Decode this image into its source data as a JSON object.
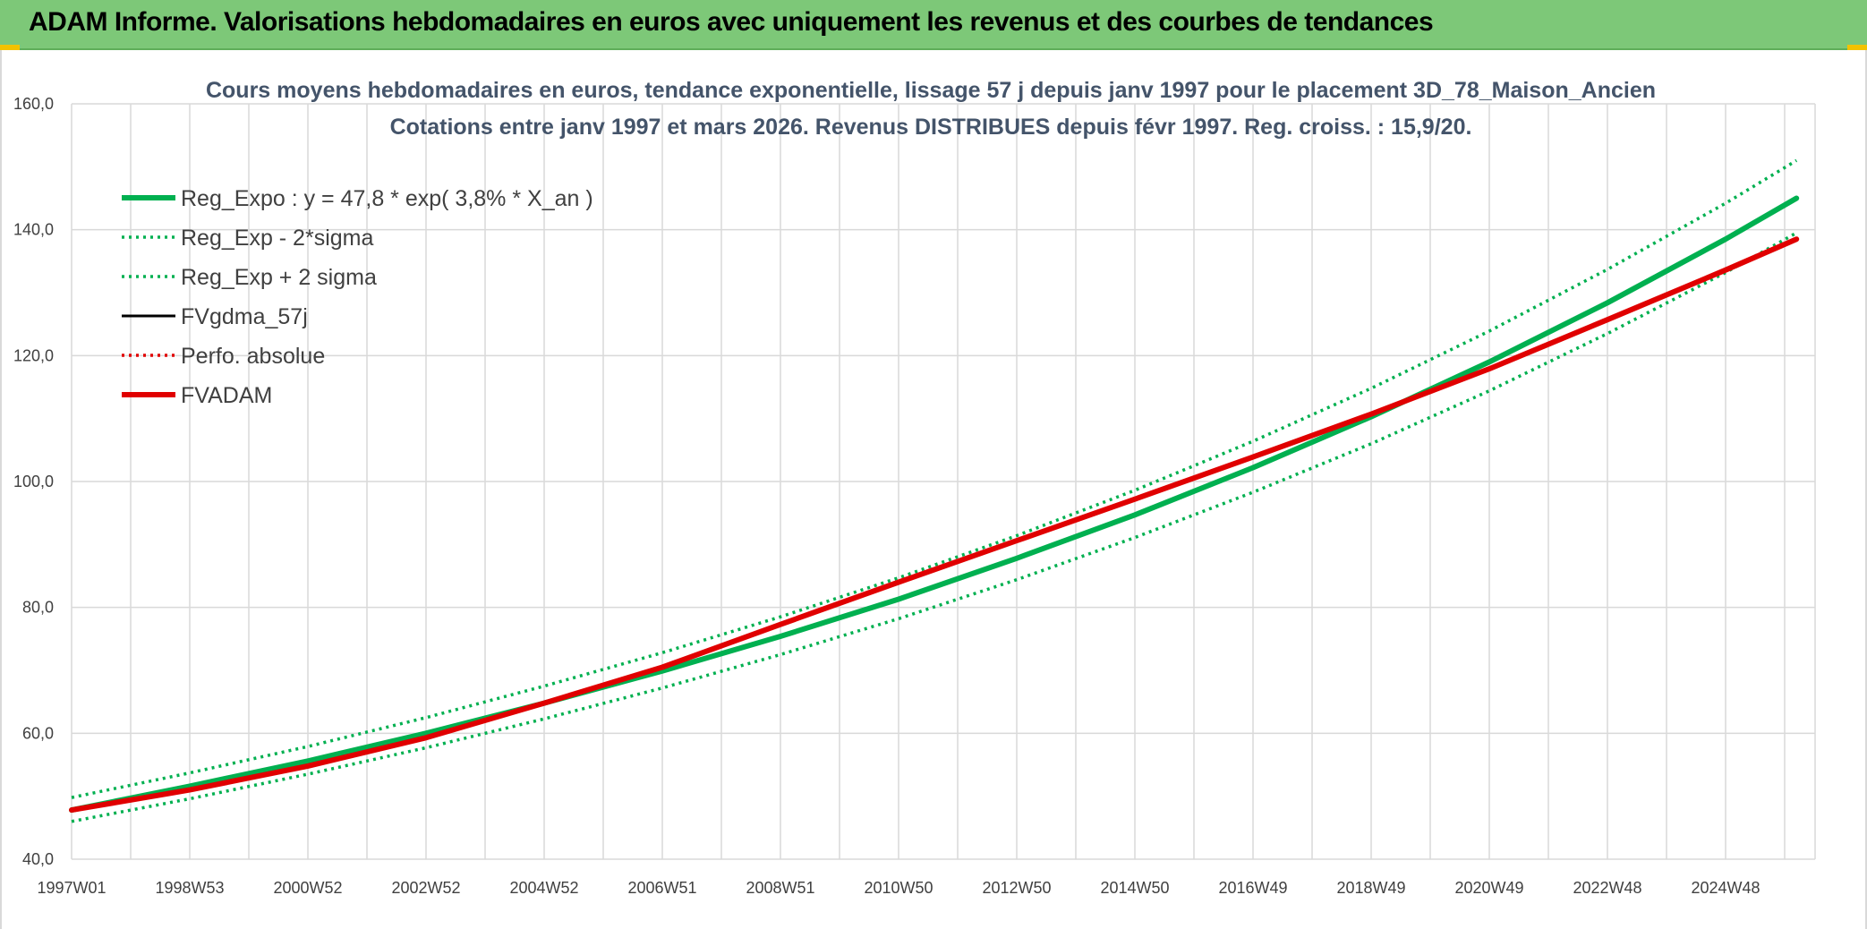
{
  "header": {
    "title": "ADAM Informe. Valorisations hebdomadaires en euros avec uniquement les revenus et des courbes de tendances"
  },
  "colors": {
    "header_bg": "#7dc878",
    "green": "#00b050",
    "red": "#e00000",
    "black": "#000000",
    "grid": "#d9d9d9"
  },
  "chart_data": {
    "type": "line",
    "title": "Cours moyens hebdomadaires en euros, tendance exponentielle, lissage 57 j depuis janv 1997 pour le placement 3D_78_Maison_Ancien",
    "subtitle": "Cotations entre janv 1997 et mars 2026. Revenus DISTRIBUES depuis févr 1997. Reg. croiss. : 15,9/20.",
    "ylim": [
      40,
      160
    ],
    "y_ticks": [
      "40,0",
      "60,0",
      "80,0",
      "100,0",
      "120,0",
      "140,0",
      "160,0"
    ],
    "y_tick_values": [
      40,
      60,
      80,
      100,
      120,
      140,
      160
    ],
    "x_range": [
      1997.0,
      2026.2
    ],
    "x_ticks": [
      "1997W01",
      "1998W53",
      "2000W52",
      "2002W52",
      "2004W52",
      "2006W51",
      "2008W51",
      "2010W50",
      "2012W50",
      "2014W50",
      "2016W49",
      "2018W49",
      "2020W49",
      "2022W48",
      "2024W48"
    ],
    "x_tick_years": [
      1997.0,
      1999.0,
      2001.0,
      2003.0,
      2005.0,
      2007.0,
      2009.0,
      2011.0,
      2013.0,
      2015.0,
      2017.0,
      2019.0,
      2021.0,
      2023.0,
      2025.0
    ],
    "grid": true,
    "legend_position": "top-left",
    "series": [
      {
        "name": "Reg_Expo : y = 47,8 * exp( 3,8% *  X_an )",
        "style": "solid-thick",
        "color": "#00b050",
        "x": [
          1997,
          1999,
          2001,
          2003,
          2005,
          2007,
          2009,
          2011,
          2013,
          2015,
          2017,
          2019,
          2021,
          2023,
          2025,
          2026.2
        ],
        "values": [
          47.8,
          51.6,
          55.6,
          60.0,
          64.8,
          69.9,
          75.4,
          81.3,
          87.8,
          94.7,
          102.2,
          110.3,
          119.0,
          128.4,
          138.5,
          145.0
        ]
      },
      {
        "name": "Reg_Exp - 2*sigma",
        "style": "dotted",
        "color": "#00b050",
        "x": [
          1997,
          1999,
          2001,
          2003,
          2005,
          2007,
          2009,
          2011,
          2013,
          2015,
          2017,
          2019,
          2021,
          2023,
          2025,
          2026.2
        ],
        "values": [
          46.0,
          49.6,
          53.5,
          57.7,
          62.3,
          67.2,
          72.5,
          78.2,
          84.4,
          91.1,
          98.3,
          106.0,
          114.4,
          123.5,
          133.2,
          139.5
        ]
      },
      {
        "name": "Reg_Exp + 2 sigma",
        "style": "dotted",
        "color": "#00b050",
        "x": [
          1997,
          1999,
          2001,
          2003,
          2005,
          2007,
          2009,
          2011,
          2013,
          2015,
          2017,
          2019,
          2021,
          2023,
          2025,
          2026.2
        ],
        "values": [
          49.8,
          53.7,
          57.9,
          62.5,
          67.5,
          72.8,
          78.5,
          84.7,
          91.4,
          98.6,
          106.4,
          114.8,
          123.9,
          133.7,
          144.2,
          151.0
        ]
      },
      {
        "name": "FVgdma_57j",
        "style": "solid",
        "color": "#000000",
        "x": [
          1997,
          1999,
          2001,
          2003,
          2005,
          2007,
          2009,
          2011,
          2013,
          2015,
          2017,
          2019,
          2021,
          2023,
          2025,
          2026.2
        ],
        "values": [
          47.8,
          51.0,
          54.8,
          59.3,
          64.8,
          70.5,
          77.3,
          84.0,
          90.6,
          97.2,
          103.9,
          110.7,
          117.9,
          125.7,
          133.6,
          138.5
        ]
      },
      {
        "name": "Perfo. absolue",
        "style": "dotted",
        "color": "#e00000",
        "x": [
          1997,
          1999,
          2001,
          2003,
          2005,
          2007,
          2009,
          2011,
          2013,
          2015,
          2017,
          2019,
          2021,
          2023,
          2025,
          2026.2
        ],
        "values": [
          47.8,
          51.0,
          54.8,
          59.3,
          64.8,
          70.5,
          77.3,
          84.0,
          90.6,
          97.2,
          103.9,
          110.7,
          117.9,
          125.7,
          133.6,
          138.5
        ]
      },
      {
        "name": "FVADAM",
        "style": "solid-thick",
        "color": "#e00000",
        "x": [
          1997,
          1999,
          2001,
          2003,
          2005,
          2007,
          2009,
          2011,
          2013,
          2015,
          2017,
          2019,
          2021,
          2023,
          2025,
          2026.2
        ],
        "values": [
          47.8,
          51.0,
          54.8,
          59.3,
          64.8,
          70.5,
          77.3,
          84.0,
          90.6,
          97.2,
          103.9,
          110.7,
          117.9,
          125.7,
          133.6,
          138.5
        ]
      }
    ]
  }
}
